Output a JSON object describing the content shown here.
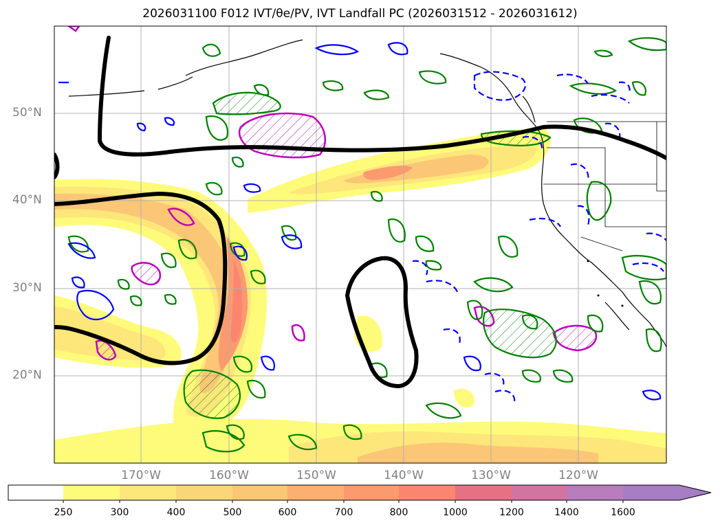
{
  "title": "2026031100 F012 IVT/θe/PV, IVT Landfall PC (2026031512 - 2026031612)",
  "latitude_labels": [
    "50°N",
    "40°N",
    "30°N",
    "20°N"
  ],
  "longitude_labels": [
    "170°W",
    "160°W",
    "150°W",
    "140°W",
    "130°W",
    "120°W"
  ],
  "colorbar": {
    "ticks": [
      "250",
      "300",
      "400",
      "500",
      "600",
      "700",
      "800",
      "1000",
      "1200",
      "1400",
      "1600"
    ],
    "colors": [
      "#ffffff",
      "#fffb7a",
      "#fde67a",
      "#fbd679",
      "#fbc676",
      "#fcaf71",
      "#fc9a6f",
      "#fb8670",
      "#e47283",
      "#d274a2",
      "#b97cbd",
      "#a77dc6"
    ]
  },
  "legend_colors": {
    "theta_e_contour": "#000000",
    "pv_positive": "#008000",
    "pv_negative": "#0000ff",
    "hatched": "#bb00bb"
  }
}
